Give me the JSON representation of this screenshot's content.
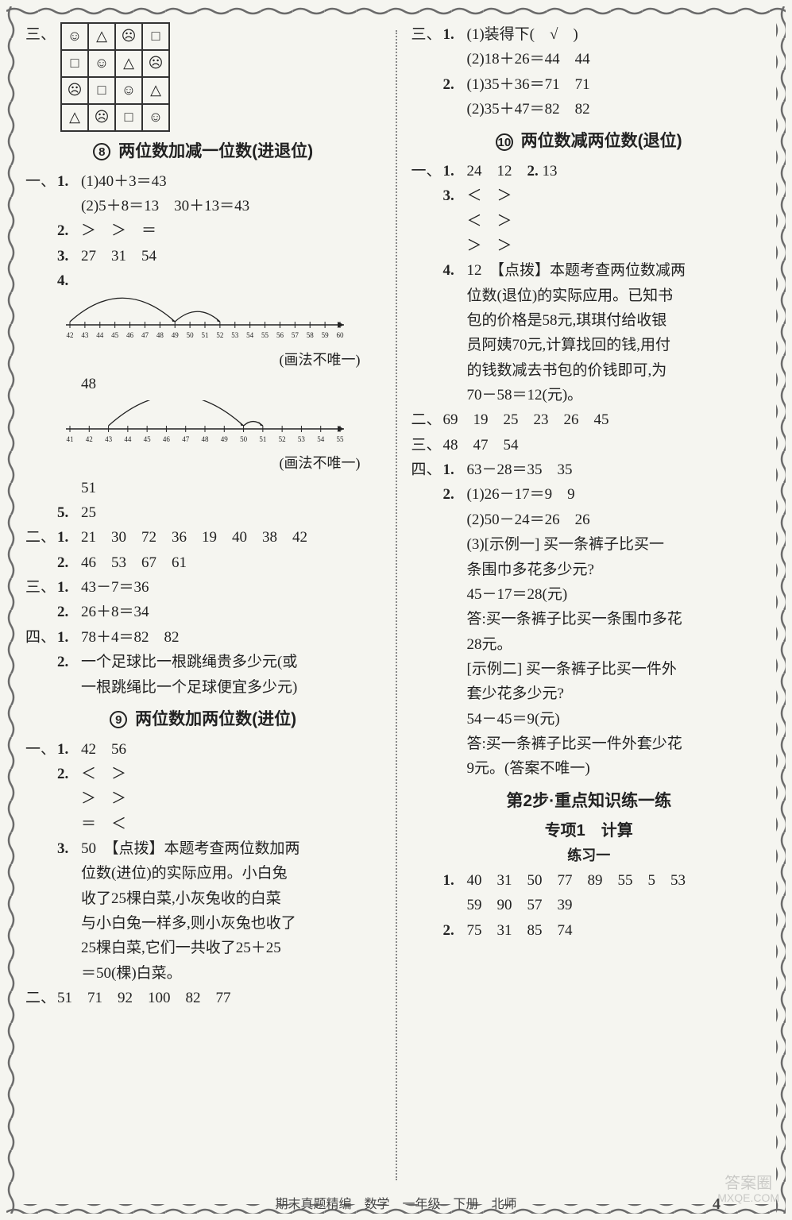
{
  "grid": {
    "rows": [
      [
        "☺",
        "△",
        "☹",
        "□"
      ],
      [
        "□",
        "☺",
        "△",
        "☹"
      ],
      [
        "☹",
        "□",
        "☺",
        "△"
      ],
      [
        "△",
        "☹",
        "□",
        "☺"
      ]
    ]
  },
  "left": {
    "marker_san": "三、",
    "sec8": {
      "num": "8",
      "title": "两位数加减一位数(进退位)"
    },
    "s8_1_marker": "一、",
    "s8_1_sub": "1.",
    "s8_1_1": "(1)40＋3＝43",
    "s8_1_2": "(2)5＋8＝13　30＋13＝43",
    "s8_2_sub": "2.",
    "s8_2": "＞　＞　＝",
    "s8_3_sub": "3.",
    "s8_3": "27　31　54",
    "s8_4_sub": "4.",
    "nl1": {
      "start": 42,
      "end": 60,
      "arcs": [
        [
          42,
          49
        ],
        [
          49,
          52
        ]
      ]
    },
    "note_a": "(画法不唯一)",
    "s8_4a": "48",
    "nl2": {
      "start": 41,
      "end": 55,
      "arcs": [
        [
          43,
          50
        ],
        [
          50,
          51
        ]
      ]
    },
    "note_b": "(画法不唯一)",
    "s8_4b": "51",
    "s8_5_sub": "5.",
    "s8_5": "25",
    "s8_b2_marker": "二、",
    "s8_b2_1_sub": "1.",
    "s8_b2_1": "21　30　72　36　19　40　38　42",
    "s8_b2_2_sub": "2.",
    "s8_b2_2": "46　53　67　61",
    "s8_b3_marker": "三、",
    "s8_b3_1_sub": "1.",
    "s8_b3_1": "43－7＝36",
    "s8_b3_2_sub": "2.",
    "s8_b3_2": "26＋8＝34",
    "s8_b4_marker": "四、",
    "s8_b4_1_sub": "1.",
    "s8_b4_1": "78＋4＝82　82",
    "s8_b4_2_sub": "2.",
    "s8_b4_2a": "一个足球比一根跳绳贵多少元(或",
    "s8_b4_2b": "一根跳绳比一个足球便宜多少元)",
    "sec9": {
      "num": "9",
      "title": "两位数加两位数(进位)"
    },
    "s9_1_marker": "一、",
    "s9_1_sub": "1.",
    "s9_1": "42　56",
    "s9_2_sub": "2.",
    "s9_2a": "＜　＞",
    "s9_2b": "＞　＞",
    "s9_2c": "＝　＜",
    "s9_3_sub": "3.",
    "s9_3a": "50　【点拨】本题考查两位数加两",
    "s9_3b": "位数(进位)的实际应用。小白兔",
    "s9_3c": "收了25棵白菜,小灰兔收的白菜",
    "s9_3d": "与小白兔一样多,则小灰兔也收了",
    "s9_3e": "25棵白菜,它们一共收了25＋25",
    "s9_3f": "＝50(棵)白菜。",
    "s9_b2_marker": "二、",
    "s9_b2": "51　71　92　100　82　77"
  },
  "right": {
    "r_san_marker": "三、",
    "r_san_sub": "1.",
    "r_san_1": "(1)装得下(　√　)",
    "r_san_2": "(2)18＋26＝44　44",
    "r_san_2sub": "2.",
    "r_san_2a": "(1)35＋36＝71　71",
    "r_san_2b": "(2)35＋47＝82　82",
    "sec10": {
      "num": "10",
      "title": "两位数减两位数(退位)"
    },
    "s10_1_marker": "一、",
    "s10_1_sub": "1.",
    "s10_1": "24　12　",
    "s10_1b_sub": "2.",
    "s10_1b": "13",
    "s10_3_sub": "3.",
    "s10_3a": "＜　＞",
    "s10_3b": "＜　＞",
    "s10_3c": "＞　＞",
    "s10_4_sub": "4.",
    "s10_4a": "12　【点拨】本题考查两位数减两",
    "s10_4b": "位数(退位)的实际应用。已知书",
    "s10_4c": "包的价格是58元,琪琪付给收银",
    "s10_4d": "员阿姨70元,计算找回的钱,用付",
    "s10_4e": "的钱数减去书包的价钱即可,为",
    "s10_4f": "70－58＝12(元)。",
    "s10_b2_marker": "二、",
    "s10_b2": "69　19　25　23　26　45",
    "s10_b3_marker": "三、",
    "s10_b3": "48　47　54",
    "s10_b4_marker": "四、",
    "s10_b4_1_sub": "1.",
    "s10_b4_1": "63－28＝35　35",
    "s10_b4_2_sub": "2.",
    "s10_b4_2a": "(1)26－17＝9　9",
    "s10_b4_2b": "(2)50－24＝26　26",
    "s10_b4_2c": "(3)[示例一] 买一条裤子比买一",
    "s10_b4_2d": "条围巾多花多少元?",
    "s10_b4_2e": "45－17＝28(元)",
    "s10_b4_2f": "答:买一条裤子比买一条围巾多花",
    "s10_b4_2g": "28元。",
    "s10_b4_2h": "[示例二] 买一条裤子比买一件外",
    "s10_b4_2i": "套少花多少元?",
    "s10_b4_2j": "54－45＝9(元)",
    "s10_b4_2k": "答:买一条裤子比买一件外套少花",
    "s10_b4_2l": "9元。(答案不唯一)",
    "step2_title": "第2步·重点知识练一练",
    "zx1_title": "专项1　计算",
    "lx1_title": "练习一",
    "lx1_1_sub": "1.",
    "lx1_1a": "40　31　50　77　89　55　5　53",
    "lx1_1b": "59　90　57　39",
    "lx1_2_sub": "2.",
    "lx1_2": "75　31　85　74"
  },
  "footer": "期末真题精编　数学　一年级　下册　北师",
  "pagenum": "4",
  "watermark_top": "答案圈",
  "watermark_bot": "MXQE.COM",
  "border_color": "#6a6a6a"
}
